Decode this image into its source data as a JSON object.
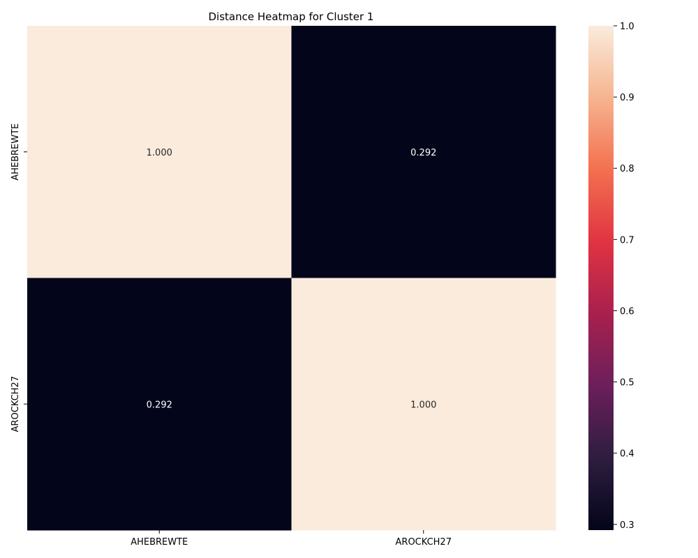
{
  "chart_data": {
    "type": "heatmap",
    "title": "Distance Heatmap for Cluster 1",
    "xlabel": "",
    "ylabel": "",
    "x_categories": [
      "AHEBREWTE",
      "AROCKCH27"
    ],
    "y_categories": [
      "AHEBREWTE",
      "AROCKCH27"
    ],
    "values": [
      [
        1.0,
        0.292
      ],
      [
        0.292,
        1.0
      ]
    ],
    "cell_labels": [
      [
        "1.000",
        "0.292"
      ],
      [
        "0.292",
        "1.000"
      ]
    ],
    "colorbar": {
      "range": [
        0.292,
        1.0
      ],
      "ticks": [
        0.3,
        0.4,
        0.5,
        0.6,
        0.7,
        0.8,
        0.9,
        1.0
      ],
      "tick_labels": [
        "0.3",
        "0.4",
        "0.5",
        "0.6",
        "0.7",
        "0.8",
        "0.9",
        "1.0"
      ],
      "colormap": "rocket",
      "colors": [
        "#03051a",
        "#2e1d3f",
        "#6b1f5b",
        "#a8204e",
        "#e13342",
        "#f3704f",
        "#f6b48f",
        "#faebdd"
      ]
    },
    "grid": false
  }
}
